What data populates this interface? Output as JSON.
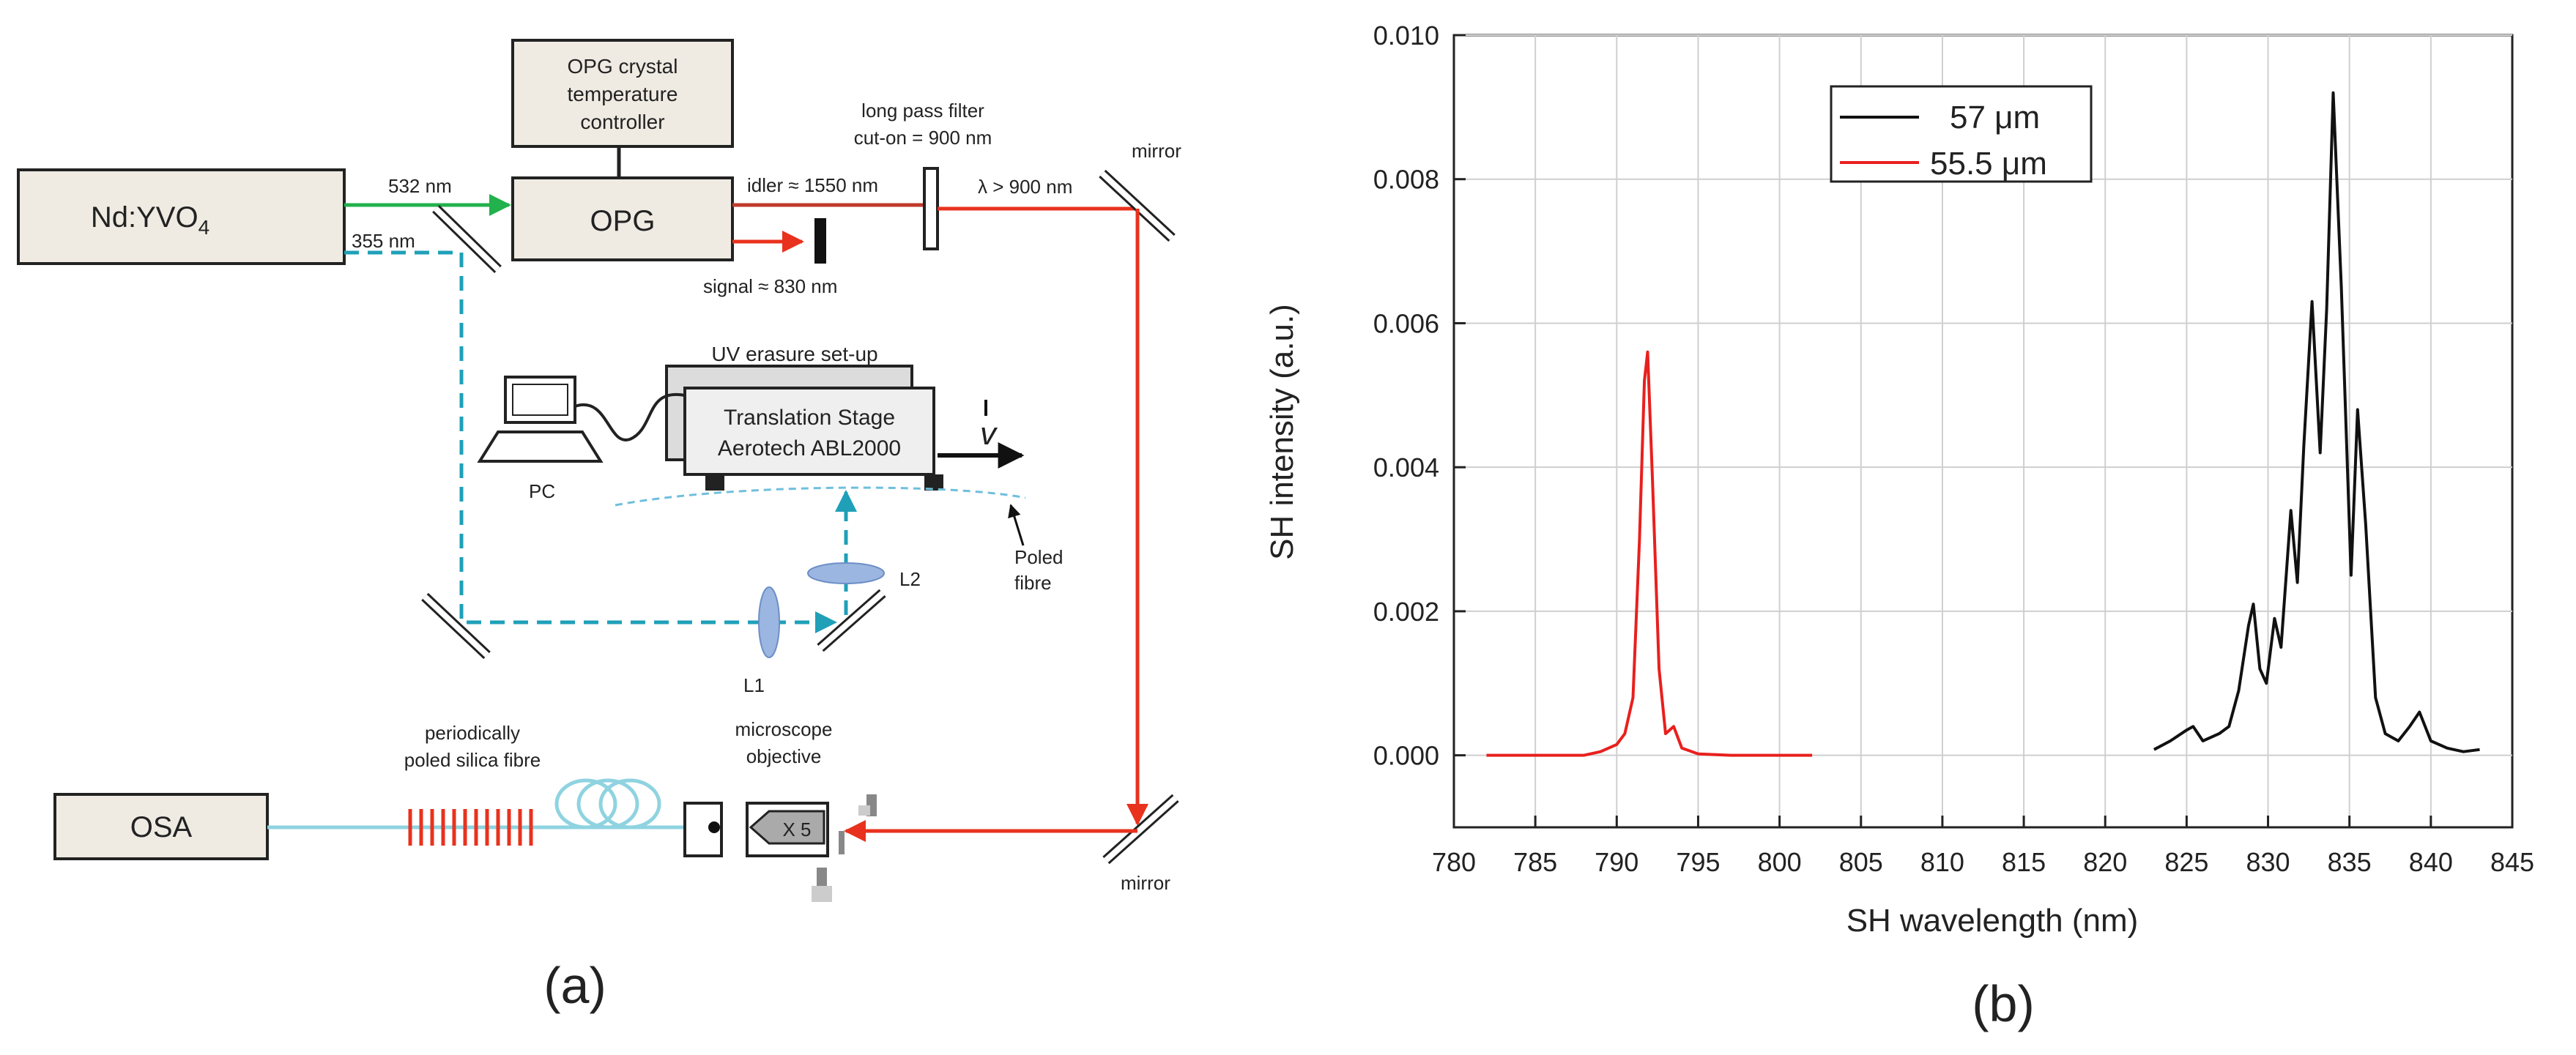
{
  "panel_a": {
    "caption": "(a)",
    "laser": {
      "main": "Nd:YVO",
      "sub": "4"
    },
    "controller": [
      "OPG crystal",
      "temperature",
      "controller"
    ],
    "opg": "OPG",
    "beam_532": "532 nm",
    "beam_355": "355 nm",
    "idler": "idler ≈ 1550 nm",
    "signal": "signal ≈ 830 nm",
    "filter": [
      "long pass filter",
      "cut-on = 900 nm"
    ],
    "lambda": "λ > 900 nm",
    "mirror_top": "mirror",
    "mirror_bottom": "mirror",
    "uv_setup": "UV erasure set-up",
    "stage": [
      "Translation Stage",
      "Aerotech ABL2000"
    ],
    "velocity": "v",
    "pc": "PC",
    "poled_fibre": [
      "Poled",
      "fibre"
    ],
    "l2": "L2",
    "l1": "L1",
    "ppsf": [
      "periodically",
      "poled silica fibre"
    ],
    "objective": [
      "microscope",
      "objective"
    ],
    "objective_mag": "X 5",
    "osa": "OSA",
    "colors": {
      "green": "#22b14c",
      "red": "#e8321e",
      "teal": "#1fa0b8",
      "fibre": "#8fd3e0",
      "box": "#efebe3"
    }
  },
  "panel_b": {
    "caption": "(b)"
  },
  "chart_data": {
    "type": "line",
    "xlabel": "SH wavelength (nm)",
    "ylabel": "SH intensity (a.u.)",
    "xlim": [
      780,
      845
    ],
    "ylim": [
      -0.001,
      0.01
    ],
    "xticks": [
      "780",
      "785",
      "790",
      "795",
      "800",
      "805",
      "810",
      "815",
      "820",
      "825",
      "830",
      "835",
      "840",
      "845"
    ],
    "yticks": [
      "0.000",
      "0.002",
      "0.004",
      "0.006",
      "0.008",
      "0.010"
    ],
    "grid": true,
    "legend_position": "top-left",
    "series": [
      {
        "name": "57   μm",
        "color": "#111111",
        "x": [
          823,
          824,
          825,
          825.4,
          826,
          827,
          827.6,
          828.2,
          828.8,
          829.1,
          829.5,
          829.9,
          830.4,
          830.8,
          831.4,
          831.8,
          832.2,
          832.7,
          833.2,
          833.6,
          834.0,
          834.5,
          835.1,
          835.5,
          836.0,
          836.6,
          837.2,
          838.0,
          838.7,
          839.3,
          840,
          841,
          842,
          843
        ],
        "y": [
          8e-05,
          0.0002,
          0.00035,
          0.0004,
          0.0002,
          0.0003,
          0.0004,
          0.0009,
          0.0018,
          0.0021,
          0.0012,
          0.001,
          0.0019,
          0.0015,
          0.0034,
          0.0024,
          0.0043,
          0.0063,
          0.0042,
          0.0062,
          0.0092,
          0.0065,
          0.0025,
          0.0048,
          0.0032,
          0.0008,
          0.0003,
          0.0002,
          0.0004,
          0.0006,
          0.0002,
          0.0001,
          5e-05,
          8e-05
        ]
      },
      {
        "name": "55.5  μm",
        "color": "#e8201e",
        "x": [
          782,
          784,
          786,
          788,
          789,
          790,
          790.5,
          791,
          791.4,
          791.7,
          791.9,
          792.2,
          792.6,
          793.0,
          793.5,
          794.0,
          795,
          797,
          800,
          802
        ],
        "y": [
          0,
          0,
          0,
          0,
          5e-05,
          0.00015,
          0.0003,
          0.0008,
          0.003,
          0.0052,
          0.0056,
          0.0038,
          0.0012,
          0.0003,
          0.0004,
          0.0001,
          2e-05,
          0,
          0,
          0
        ]
      }
    ]
  }
}
